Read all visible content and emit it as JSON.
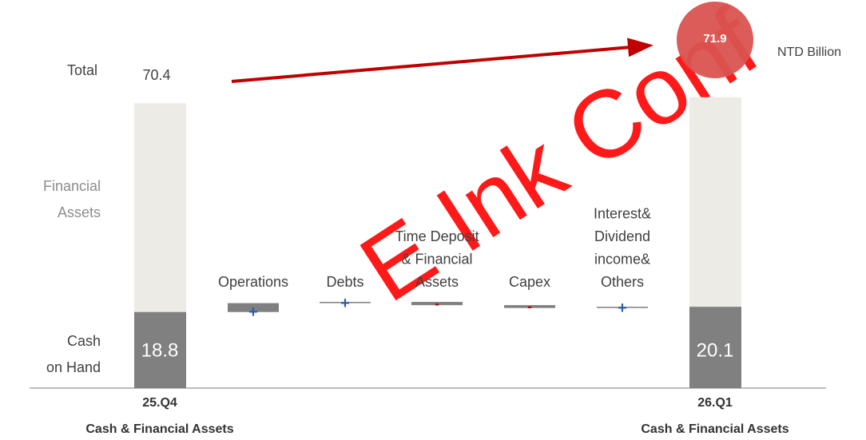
{
  "chart_data": {
    "type": "waterfall",
    "unit": "NTD Billion",
    "watermark": "E Ink Conf",
    "segment_labels": {
      "total": "Total",
      "financial": [
        "Financial",
        "Assets"
      ],
      "cash": [
        "Cash",
        "on Hand"
      ]
    },
    "start": {
      "label": [
        "25.Q4",
        "Cash & Financial Assets"
      ],
      "cash": 18.8,
      "total": 70.4
    },
    "end": {
      "label": [
        "26.Q1",
        "Cash & Financial Assets"
      ],
      "cash": 20.1,
      "total": 71.9
    },
    "categories": [
      [
        "Operations"
      ],
      [
        "Debts"
      ],
      [
        "Time Deposit",
        "& Financial",
        "Assets"
      ],
      [
        "Capex"
      ],
      [
        "Interest&",
        "Dividend",
        "income&",
        "Others"
      ]
    ],
    "values": [
      2.2,
      0.3,
      -0.8,
      -0.7,
      0.3
    ],
    "signs": [
      "+",
      "+",
      "-",
      "-",
      "+"
    ],
    "colors": {
      "cash": "#808080",
      "financial": "#ecebe6",
      "plus": "#2e5fa3",
      "minus": "#c00000",
      "highlight": "#d9534f",
      "arrow": "#c00000"
    },
    "ylim": [
      0,
      90
    ]
  }
}
